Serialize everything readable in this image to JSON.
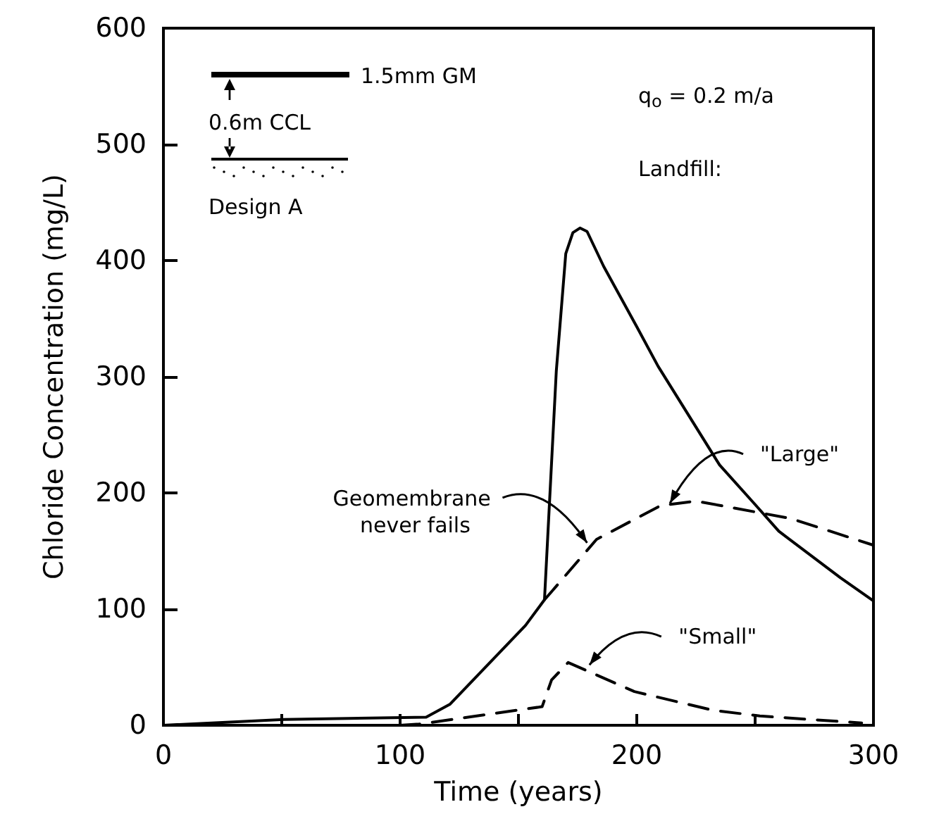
{
  "chart_data": {
    "type": "line",
    "xlabel": "Time (years)",
    "ylabel": "Chloride Concentration (mg/L)",
    "xlim": [
      0,
      300
    ],
    "xticks": [
      0,
      {
        "value": 50,
        "label": null
      },
      100,
      {
        "value": 150,
        "label": null
      },
      200,
      {
        "value": 250,
        "label": null
      },
      300
    ],
    "ylim": [
      0,
      600
    ],
    "yticks": [
      0,
      100,
      200,
      300,
      400,
      500,
      600
    ],
    "grid": false,
    "marker": "none",
    "series": [
      {
        "color": "#000000",
        "line_style": "solid",
        "x": [
          0,
          51,
          111,
          121,
          153,
          161,
          166,
          170,
          173,
          176,
          179,
          186,
          200,
          209,
          235,
          250,
          260,
          286,
          300
        ],
        "values": [
          0,
          5,
          7,
          18,
          86,
          108,
          305,
          406,
          424,
          428,
          425,
          395,
          343,
          309,
          224,
          190,
          167,
          127,
          107
        ]
      },
      {
        "color": "#000000",
        "line_style": "dashed",
        "x": [
          161,
          164,
          183,
          210,
          225,
          265,
          300
        ],
        "values": [
          108,
          115,
          160,
          189,
          193,
          178,
          155
        ]
      },
      {
        "color": "#000000",
        "line_style": "dashed",
        "x": [
          100,
          108,
          160,
          164,
          171,
          199,
          232,
          252,
          295
        ],
        "values": [
          0,
          1,
          16,
          39,
          54,
          29,
          13,
          8,
          2
        ]
      }
    ],
    "annotations": [
      "1.5mm GM",
      "0.6m CCL",
      "Design A",
      "q$_{o}$ = 0.2 m/a",
      "Landfill:",
      {
        "text": "Geomembrane never fails",
        "x": 179,
        "y": 157
      },
      {
        "text": "\"Large\"",
        "x": 214,
        "y": 191
      },
      {
        "text": "\"Small\"",
        "x": 180,
        "y": 52
      }
    ]
  }
}
